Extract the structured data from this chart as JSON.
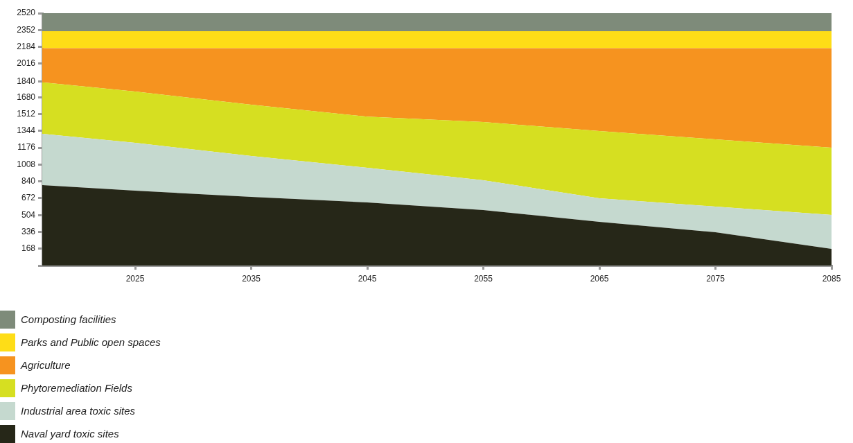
{
  "chart_data": {
    "type": "area",
    "stacked": true,
    "x": [
      2017,
      2025,
      2035,
      2045,
      2055,
      2065,
      2075,
      2085
    ],
    "xlim": [
      2017,
      2085
    ],
    "xticks": [
      2025,
      2035,
      2045,
      2055,
      2065,
      2075,
      2085
    ],
    "ylim": [
      0,
      2520
    ],
    "yticks": [
      {
        "value": 0,
        "label": null
      },
      168,
      336,
      504,
      672,
      840,
      1008,
      1176,
      1344,
      1512,
      1680,
      1840,
      2016,
      2184,
      2352,
      2520
    ],
    "grid": false,
    "legend": "bottom left",
    "series": [
      {
        "name": "Naval yard toxic sites",
        "color": "#262718",
        "values": [
          803,
          748,
          685,
          630,
          554,
          436,
          332,
          166
        ]
      },
      {
        "name": "Industrial area toxic sites",
        "color": "#c5d9cf",
        "values": [
          512,
          477,
          409,
          346,
          298,
          236,
          256,
          339
        ]
      },
      {
        "name": "Phytoremediation Fields",
        "color": "#d6df21",
        "values": [
          514,
          513,
          512,
          510,
          581,
          671,
          672,
          672
        ]
      },
      {
        "name": "Agriculture",
        "color": "#f6931f",
        "values": [
          341,
          432,
          564,
          684,
          737,
          827,
          910,
          993
        ]
      },
      {
        "name": "Parks and Public open spaces",
        "color": "#fedd17",
        "values": [
          170,
          170,
          170,
          170,
          170,
          170,
          170,
          170
        ]
      },
      {
        "name": "Composting facilities",
        "color": "#7e8b7a",
        "values": [
          180,
          180,
          180,
          180,
          180,
          180,
          180,
          180
        ]
      }
    ]
  }
}
